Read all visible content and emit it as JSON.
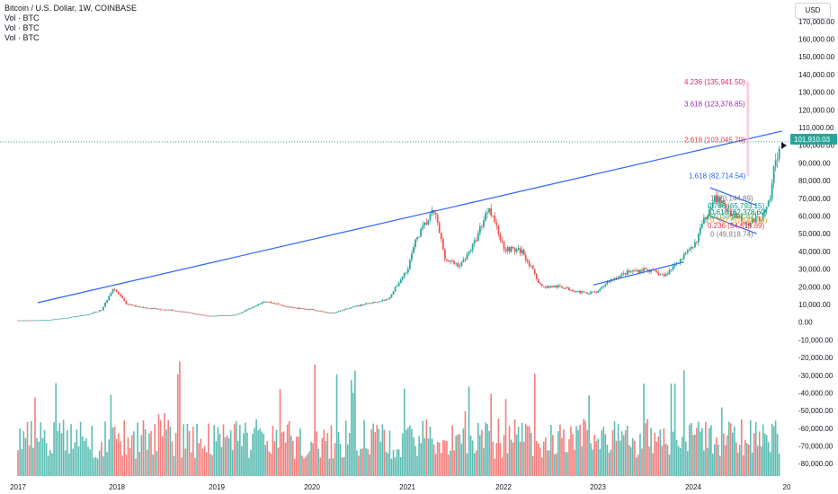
{
  "legend": {
    "title": "Bitcoin / U.S. Dollar, 1W, COINBASE",
    "volumes": [
      "Vol · BTC",
      "Vol · BTC",
      "Vol · BTC"
    ]
  },
  "currency": "USD",
  "last_price": "101,910.03",
  "colors": {
    "up": "#26a69a",
    "down": "#ef5350",
    "trendline": "#2962ff",
    "last_price_badge": "#26a69a"
  },
  "chart_data": {
    "type": "candlestick",
    "x_axis": {
      "ticks": [
        "2017",
        "2018",
        "2019",
        "2020",
        "2021",
        "2022",
        "2023",
        "2024",
        "20"
      ],
      "range": [
        2017.0,
        2024.95
      ]
    },
    "y_axis": {
      "range": [
        -88000,
        177000
      ],
      "ticks": [
        "170,000.00",
        "160,000.00",
        "150,000.00",
        "140,000.00",
        "130,000.00",
        "120,000.00",
        "110,000.00",
        "100,000.00",
        "90,000.00",
        "80,000.00",
        "70,000.00",
        "60,000.00",
        "50,000.00",
        "40,000.00",
        "30,000.00",
        "20,000.00",
        "10,000.00",
        "0.00",
        "-10,000.00",
        "-20,000.00",
        "-30,000.00",
        "-40,000.00",
        "-50,000.00",
        "-60,000.00",
        "-70,000.00",
        "-80,000.00"
      ],
      "tick_values": [
        170000,
        160000,
        150000,
        140000,
        130000,
        120000,
        110000,
        100000,
        90000,
        80000,
        70000,
        60000,
        50000,
        40000,
        30000,
        20000,
        10000,
        0,
        -10000,
        -20000,
        -30000,
        -40000,
        -50000,
        -60000,
        -70000,
        -80000
      ]
    },
    "price_path": [
      [
        2017.0,
        950
      ],
      [
        2017.3,
        1200
      ],
      [
        2017.5,
        2500
      ],
      [
        2017.7,
        4200
      ],
      [
        2017.85,
        7000
      ],
      [
        2017.96,
        19500
      ],
      [
        2018.1,
        10000
      ],
      [
        2018.3,
        8000
      ],
      [
        2018.6,
        6500
      ],
      [
        2018.9,
        3500
      ],
      [
        2019.2,
        4000
      ],
      [
        2019.5,
        12000
      ],
      [
        2019.8,
        8000
      ],
      [
        2020.0,
        7200
      ],
      [
        2020.2,
        5000
      ],
      [
        2020.5,
        9500
      ],
      [
        2020.8,
        13000
      ],
      [
        2021.0,
        30000
      ],
      [
        2021.1,
        48000
      ],
      [
        2021.28,
        63000
      ],
      [
        2021.4,
        35000
      ],
      [
        2021.55,
        32000
      ],
      [
        2021.7,
        45000
      ],
      [
        2021.85,
        66000
      ],
      [
        2022.0,
        42000
      ],
      [
        2022.2,
        40000
      ],
      [
        2022.4,
        20000
      ],
      [
        2022.6,
        20000
      ],
      [
        2022.85,
        16500
      ],
      [
        2023.0,
        17000
      ],
      [
        2023.1,
        23000
      ],
      [
        2023.3,
        28000
      ],
      [
        2023.5,
        30000
      ],
      [
        2023.7,
        26000
      ],
      [
        2023.85,
        35000
      ],
      [
        2024.0,
        42000
      ],
      [
        2024.15,
        62000
      ],
      [
        2024.22,
        71000
      ],
      [
        2024.4,
        62000
      ],
      [
        2024.6,
        56000
      ],
      [
        2024.75,
        60000
      ],
      [
        2024.82,
        68000
      ],
      [
        2024.87,
        90000
      ],
      [
        2024.92,
        99000
      ],
      [
        2024.95,
        101910
      ]
    ],
    "long_trendline": {
      "start": [
        2017.2,
        11000
      ],
      "end": [
        2024.95,
        108000
      ]
    },
    "channel_lines": [
      {
        "start": [
          2022.95,
          21000
        ],
        "end": [
          2023.9,
          34000
        ]
      },
      {
        "start": [
          2024.18,
          76000
        ],
        "end": [
          2024.68,
          66000
        ]
      },
      {
        "start": [
          2024.18,
          60000
        ],
        "end": [
          2024.68,
          50000
        ]
      }
    ],
    "fib_labels": [
      {
        "text": "4.236 (135,941.50)",
        "level": 135941.5,
        "color": "#e91e63"
      },
      {
        "text": "3.618 (123,376.85)",
        "level": 123376.85,
        "color": "#9c27b0"
      },
      {
        "text": "2.618 (103,045.70)",
        "level": 103045.7,
        "color": "#f23645"
      },
      {
        "text": "1.618 (82,714.54)",
        "level": 82714.54,
        "color": "#2962ff"
      },
      {
        "text": "1 (70,144.89)",
        "level": 70144.89,
        "color": "#787b86"
      },
      {
        "text": "0.786 (65,793.15)",
        "level": 65793.15,
        "color": "#089981"
      },
      {
        "text": "0.618 (62,378.60)",
        "level": 62378.6,
        "color": "#00897b"
      },
      {
        "text": "0.5 (59,981.82)",
        "level": 59981.82,
        "color": "#4caf50"
      },
      {
        "text": "0.382 (57,584.03)",
        "level": 57584.03,
        "color": "#ff9800"
      },
      {
        "text": "0.236 (54,616.89)",
        "level": 54616.89,
        "color": "#f23645"
      },
      {
        "text": "0 (49,818.74)",
        "level": 49818.74,
        "color": "#787b86"
      }
    ],
    "fib_vertical": {
      "x": 2024.58,
      "from": 82714.54,
      "to": 135941.5
    },
    "volume_baseline": -87000,
    "volume_peak_top": -22000
  }
}
